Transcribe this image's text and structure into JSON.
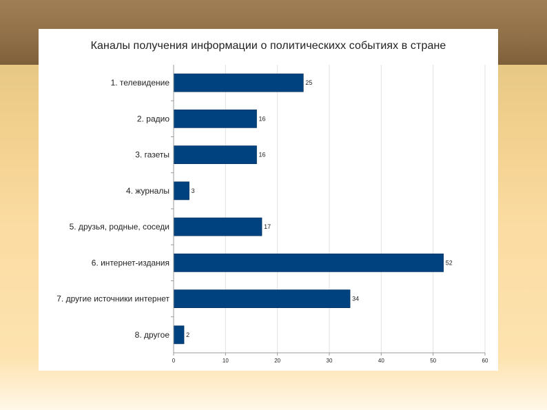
{
  "chart_data": {
    "type": "bar",
    "orientation": "horizontal",
    "title": "Каналы получения информации о политическиxх событиях в стране",
    "categories": [
      "1. телевидение",
      "2. радио",
      "3. газеты",
      "4. журналы",
      "5. друзья, родные, соседи",
      "6. интернет-издания",
      "7. другие источники интернет",
      "8. другое"
    ],
    "values": [
      25,
      16,
      16,
      3,
      17,
      52,
      34,
      2
    ],
    "xlim": [
      0,
      60
    ],
    "xticks": [
      0,
      10,
      20,
      30,
      40,
      50,
      60
    ],
    "grid": true,
    "bar_color": "#00417f",
    "show_data_labels": true
  }
}
